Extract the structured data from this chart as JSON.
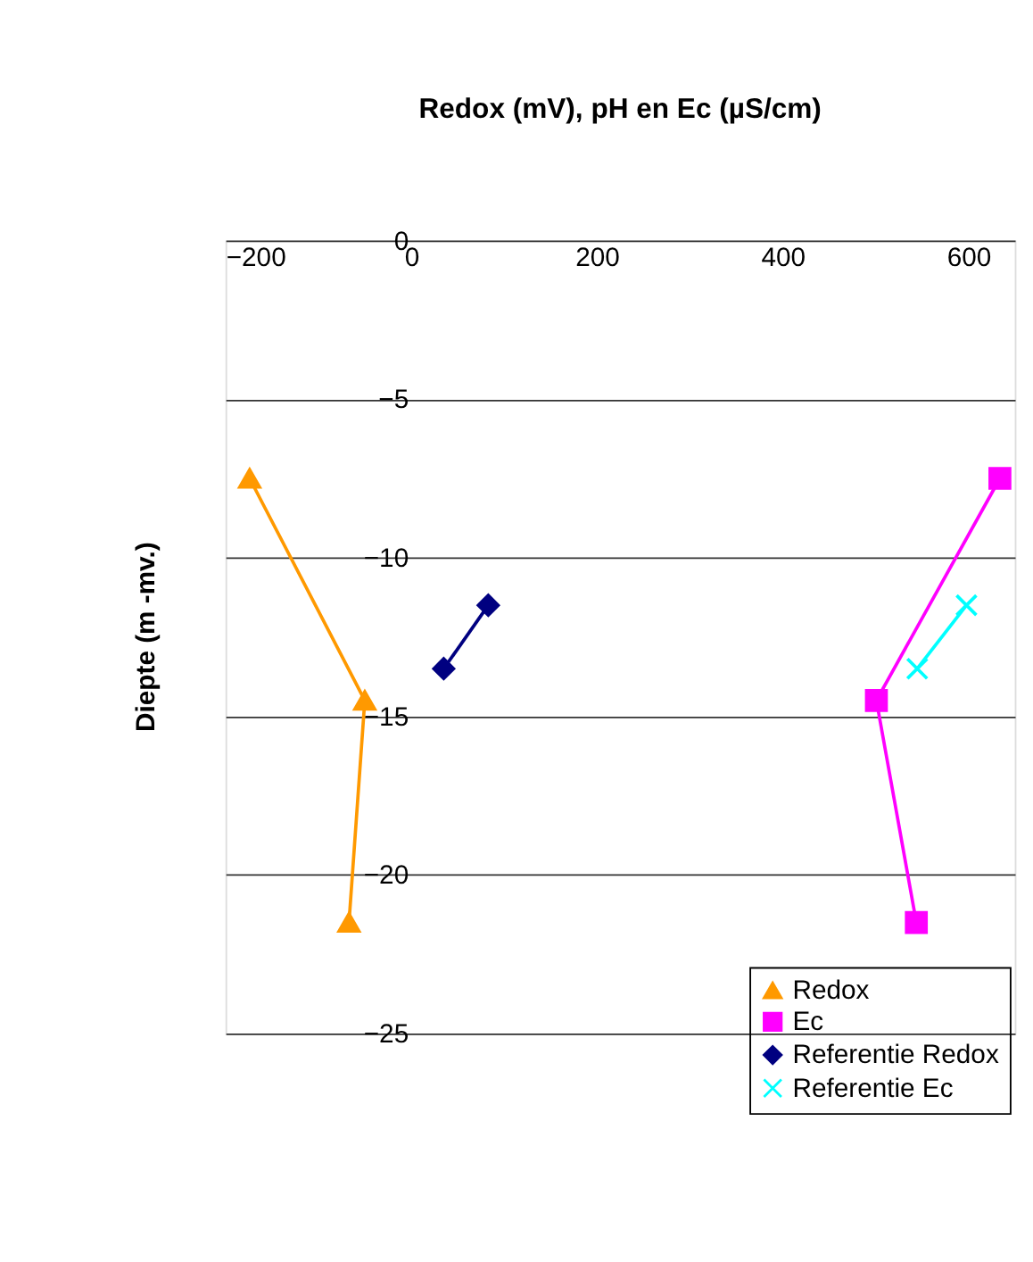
{
  "chart_data": {
    "type": "line",
    "title": "Redox (mV), pH en Ec (µS/cm)",
    "ylabel": "Diepte (m -mv.)",
    "xlim": [
      -200,
      650
    ],
    "xticks": [
      -200,
      0,
      200,
      400,
      600
    ],
    "ylim": [
      -25,
      0
    ],
    "yticks": [
      -25,
      -20,
      -15,
      -10,
      -5,
      0
    ],
    "grid": "y",
    "legend": "bottom right",
    "line_style": "solid",
    "series": [
      {
        "name": "Redox",
        "color": "#ff9900",
        "marker": "triangle",
        "x": [
          -174,
          -50,
          -67
        ],
        "values": [
          -7.5,
          -14.5,
          -21.5
        ]
      },
      {
        "name": "Ec",
        "color": "#ff00ff",
        "marker": "square",
        "x": [
          634,
          501,
          544
        ],
        "values": [
          -7.5,
          -14.5,
          -21.5
        ]
      },
      {
        "name": "Referentie Redox",
        "color": "#000080",
        "marker": "diamond",
        "x": [
          35,
          83
        ],
        "values": [
          -13.5,
          -11.5
        ]
      },
      {
        "name": "Referentie Ec",
        "color": "#00ffff",
        "marker": "cross",
        "x": [
          545,
          598
        ],
        "values": [
          -13.5,
          -11.5
        ]
      }
    ]
  }
}
